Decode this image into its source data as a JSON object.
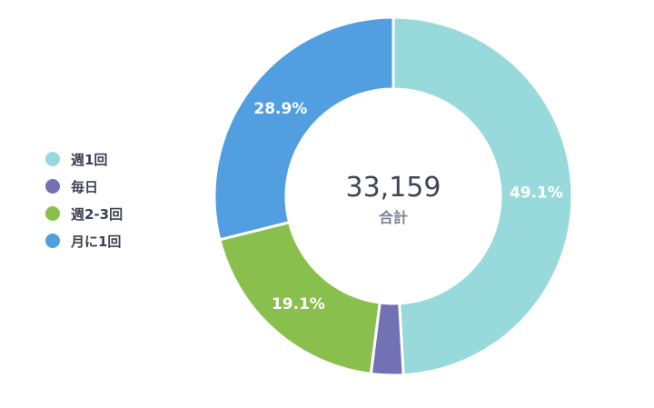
{
  "chart_data": {
    "type": "pie",
    "categories": [
      "週1回",
      "毎日",
      "週2-3回",
      "月に1回"
    ],
    "values": [
      49.1,
      2.9,
      19.1,
      28.9
    ],
    "value_labels": [
      "49.1%",
      "",
      "19.1%",
      "28.9%"
    ],
    "colors": [
      "#98dadb",
      "#7171b3",
      "#89c04d",
      "#519fe1"
    ],
    "center_total": "33,159",
    "center_label": "合計",
    "legend_position": "left"
  }
}
